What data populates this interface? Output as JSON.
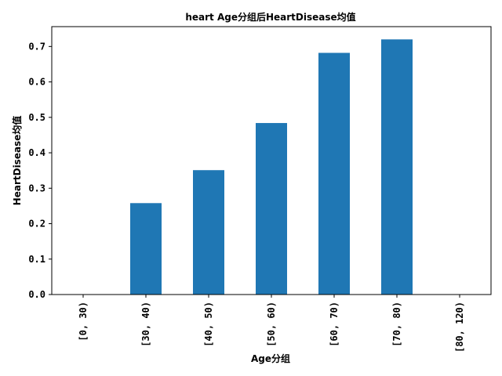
{
  "chart_data": {
    "type": "bar",
    "title": "heart Age分组后HeartDisease均值",
    "xlabel": "Age分组",
    "ylabel": "HeartDisease均值",
    "categories": [
      "[0, 30)",
      "[30, 40)",
      "[40, 50)",
      "[50, 60)",
      "[60, 70)",
      "[70, 80)",
      "[80, 120)"
    ],
    "values": [
      0.0,
      0.258,
      0.351,
      0.484,
      0.682,
      0.72,
      0.0
    ],
    "ylim": [
      0.0,
      0.756
    ],
    "yticks": [
      0.0,
      0.1,
      0.2,
      0.3,
      0.4,
      0.5,
      0.6,
      0.7
    ],
    "ytick_labels": [
      "0.0",
      "0.1",
      "0.2",
      "0.3",
      "0.4",
      "0.5",
      "0.6",
      "0.7"
    ],
    "bar_color": "#1f77b4",
    "grid": false,
    "legend": "none"
  }
}
